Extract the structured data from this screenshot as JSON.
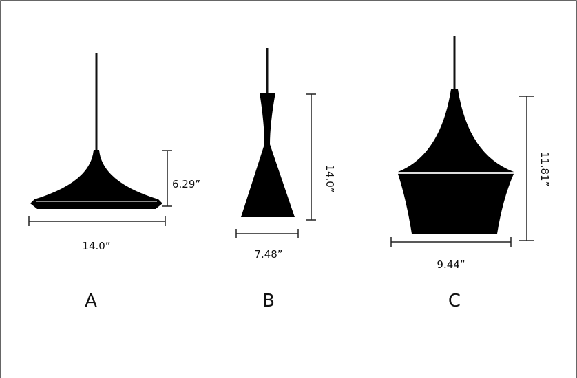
{
  "items": [
    {
      "label": "A",
      "width": "14.0”",
      "height": "6.29”"
    },
    {
      "label": "B",
      "width": "7.48”",
      "height": "14.0”"
    },
    {
      "label": "C",
      "width": "9.44”",
      "height": "11.81”"
    }
  ]
}
